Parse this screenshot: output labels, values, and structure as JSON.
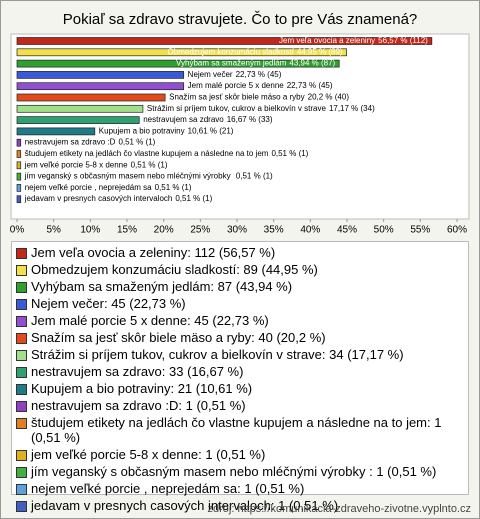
{
  "chart_data": {
    "type": "bar",
    "orientation": "horizontal",
    "title": "Pokiaľ sa zdravo stravujete. Čo to pre Vás znamená?",
    "categories": [
      "Jem veľa ovocia a zeleniny",
      "Obmedzujem konzumáciu sladkostí",
      "Vyhýbam sa smaženým jedlám",
      "Nejem večer",
      "Jem malé porcie 5 x denne",
      "Snažím sa jesť skôr biele mäso a ryby",
      "Strážim si príjem tukov, cukrov a bielkovín v strave",
      "nestravujem sa zdravo",
      "Kupujem a bio potraviny",
      "nestravujem sa zdravo :D",
      "študujem etikety na jedlách čo vlastne kupujem a následne na to jem",
      "jem veľké porcie 5-8 x denne",
      "jím veganský s občasným masem nebo mléčnými výrobky ",
      "nejem veľké porcie , neprejedám sa",
      "jedavam v presnych casových intervaloch"
    ],
    "values": [
      56.57,
      44.95,
      43.94,
      22.73,
      22.73,
      20.2,
      17.17,
      16.67,
      10.61,
      0.51,
      0.51,
      0.51,
      0.51,
      0.51,
      0.51
    ],
    "value_labels": [
      "56,57 % (112)",
      "44,95 % (89)",
      "43,94 % (87)",
      "22,73 % (45)",
      "22,73 % (45)",
      "20,2 % (40)",
      "17,17 % (34)",
      "16,67 % (33)",
      "10,61 % (21)",
      "0,51 % (1)",
      "0,51 % (1)",
      "0,51 % (1)",
      "0,51 % (1)",
      "0,51 % (1)",
      "0,51 % (1)"
    ],
    "legend_labels": [
      "Jem veľa ovocia a zeleniny: 112 (56,57 %)",
      "Obmedzujem konzumáciu sladkostí: 89 (44,95 %)",
      "Vyhýbam sa smaženým jedlám: 87 (43,94 %)",
      "Nejem večer: 45 (22,73 %)",
      "Jem malé porcie 5 x denne: 45 (22,73 %)",
      "Snažím sa jesť skôr biele mäso a ryby: 40 (20,2 %)",
      "Strážim si príjem tukov, cukrov a bielkovín v strave: 34 (17,17 %)",
      "nestravujem sa zdravo: 33 (16,67 %)",
      "Kupujem a bio potraviny: 21 (10,61 %)",
      "nestravujem sa zdravo :D: 1 (0,51 %)",
      "študujem etikety na jedlách čo vlastne kupujem a následne na to jem: 1 (0,51 %)",
      "jem veľké porcie 5-8 x denne: 1 (0,51 %)",
      "jím veganský s občasným masem nebo mléčnými výrobky : 1 (0,51 %)",
      "nejem veľké porcie , neprejedám sa: 1 (0,51 %)",
      "jedavam v presnych casových intervaloch: 1 (0,51 %)"
    ],
    "colors": [
      "#c0281c",
      "#f2e04a",
      "#2ea02e",
      "#3a5bd8",
      "#8f4fd0",
      "#e04a1c",
      "#a0e08a",
      "#2fa070",
      "#1f7a8a",
      "#9040c0",
      "#e08020",
      "#e0b020",
      "#40b040",
      "#60a0e0",
      "#4060c0"
    ],
    "xlim": [
      0,
      60
    ],
    "xticks": [
      {
        "value": 0,
        "label": "0%"
      },
      {
        "value": 5,
        "label": "5%"
      },
      {
        "value": 10,
        "label": "10%"
      },
      {
        "value": 15,
        "label": "15%"
      },
      {
        "value": 20,
        "label": "20%"
      },
      {
        "value": 25,
        "label": "25%"
      },
      {
        "value": 30,
        "label": "30%"
      },
      {
        "value": 35,
        "label": "35%"
      },
      {
        "value": 40,
        "label": "40%"
      },
      {
        "value": 45,
        "label": "45%"
      },
      {
        "value": 50,
        "label": "50%"
      },
      {
        "value": 55,
        "label": "55%"
      },
      {
        "value": 60,
        "label": "60%"
      }
    ],
    "source": "zdroj: https://komunikacia-zdraveho-zivotne.vyplnto.cz"
  }
}
